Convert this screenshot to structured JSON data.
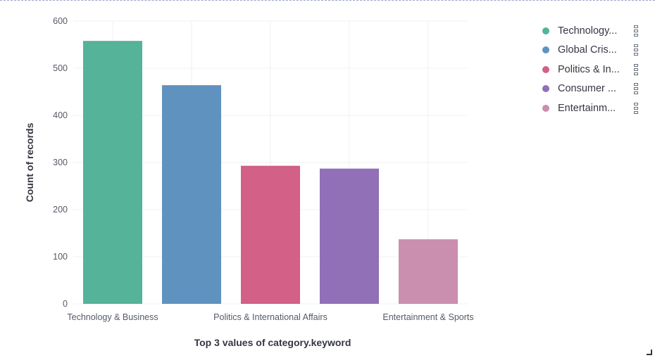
{
  "chart_data": {
    "type": "bar",
    "categories": [
      "Technology & Business",
      "Global Crisis",
      "Politics & International Affairs",
      "Consumer",
      "Entertainment & Sports"
    ],
    "values": [
      558,
      464,
      293,
      287,
      137
    ],
    "colors": [
      "#54b399",
      "#6092c0",
      "#d36086",
      "#9170b8",
      "#ca8eae"
    ],
    "xlabel": "Top 3 values of category.keyword",
    "ylabel": "Count of records",
    "ylim": [
      0,
      600
    ],
    "yticks": [
      "0",
      "100",
      "200",
      "300",
      "400",
      "500",
      "600"
    ],
    "xtick_labels": [
      "Technology & Business",
      "",
      "Politics & International Affairs",
      "",
      "Entertainment & Sports"
    ],
    "grid": true,
    "legend_position": "top-right"
  },
  "legend": {
    "items": [
      {
        "label": "Technology...",
        "color": "#54b399"
      },
      {
        "label": "Global Cris...",
        "color": "#6092c0"
      },
      {
        "label": "Politics & In...",
        "color": "#d36086"
      },
      {
        "label": "Consumer ...",
        "color": "#9170b8"
      },
      {
        "label": "Entertainm...",
        "color": "#ca8eae"
      }
    ]
  }
}
